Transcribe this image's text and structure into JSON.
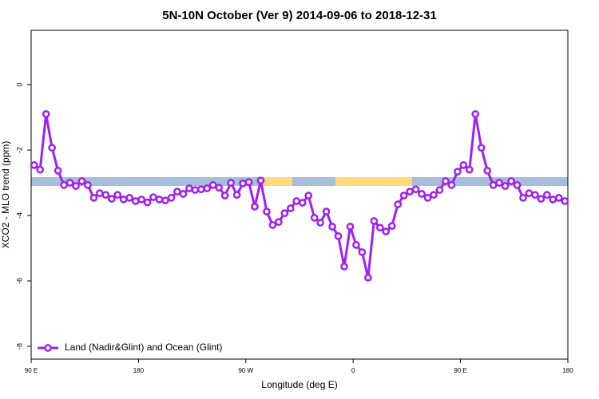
{
  "chart_data": {
    "type": "line",
    "title": "5N-10N October (Ver 9)   2014-09-06 to 2018-12-31",
    "xlabel": "Longitude (deg E)",
    "ylabel": "XCO2 - MLO trend (ppm)",
    "xlim": [
      90,
      540
    ],
    "ylim": [
      -8.39,
      1.66
    ],
    "xticks": [
      {
        "value": 90,
        "label": "90 E"
      },
      {
        "value": 180,
        "label": "180"
      },
      {
        "value": 270,
        "label": "90 W"
      },
      {
        "value": 360,
        "label": "0"
      },
      {
        "value": 450,
        "label": "90 E"
      },
      {
        "value": 540,
        "label": "180"
      }
    ],
    "yticks": [
      0,
      -2,
      -4,
      -6,
      -8
    ],
    "legend": "bottom-left",
    "x": [
      92.5,
      97.5,
      102.5,
      107.5,
      112.5,
      117.5,
      122.5,
      127.5,
      132.5,
      137.5,
      142.5,
      147.5,
      152.5,
      157.5,
      162.5,
      167.5,
      172.5,
      177.5,
      182.5,
      187.5,
      192.5,
      197.5,
      202.5,
      207.5,
      212.5,
      217.5,
      222.5,
      227.5,
      232.5,
      237.5,
      242.5,
      247.5,
      252.5,
      257.5,
      262.5,
      267.5,
      272.5,
      277.5,
      282.5,
      287.5,
      292.5,
      297.5,
      302.5,
      307.5,
      312.5,
      317.5,
      322.5,
      327.5,
      332.5,
      337.5,
      342.5,
      347.5,
      352.5,
      357.5,
      362.5,
      367.5,
      372.5,
      377.5,
      382.5,
      387.5,
      392.5,
      397.5,
      402.5,
      407.5,
      412.5,
      417.5,
      422.5,
      427.5,
      432.5,
      437.5,
      442.5,
      447.5,
      452.5,
      457.5,
      462.5,
      467.5,
      472.5,
      477.5,
      482.5,
      487.5,
      492.5,
      497.5,
      502.5,
      507.5,
      512.5,
      517.5,
      522.5,
      527.5,
      532.5,
      537.5
    ],
    "series": [
      {
        "name": "Land (Nadir&Glint) and Ocean (Glint)",
        "color": "#a020f0",
        "values": [
          -2.46,
          -2.6,
          -0.9,
          -1.93,
          -2.63,
          -3.07,
          -3.0,
          -3.1,
          -2.95,
          -3.07,
          -3.46,
          -3.32,
          -3.37,
          -3.49,
          -3.37,
          -3.51,
          -3.46,
          -3.56,
          -3.51,
          -3.6,
          -3.44,
          -3.51,
          -3.54,
          -3.46,
          -3.27,
          -3.34,
          -3.17,
          -3.22,
          -3.2,
          -3.17,
          -3.07,
          -3.15,
          -3.39,
          -3.0,
          -3.37,
          -3.02,
          -2.98,
          -3.73,
          -2.93,
          -3.88,
          -4.29,
          -4.2,
          -3.93,
          -3.78,
          -3.56,
          -3.61,
          -3.39,
          -4.07,
          -4.22,
          -3.88,
          -4.34,
          -4.63,
          -5.56,
          -4.34,
          -4.9,
          -5.12,
          -5.9,
          -4.17,
          -4.37,
          -4.49,
          -4.32,
          -3.66,
          -3.39,
          -3.27,
          -3.2,
          -3.34,
          -3.46,
          -3.37,
          -3.22,
          -2.95,
          -3.07,
          -2.66,
          -2.46,
          -2.6,
          -0.9,
          -1.93,
          -2.63,
          -3.07,
          -3.0,
          -3.1,
          -2.95,
          -3.07,
          -3.46,
          -3.32,
          -3.37,
          -3.49,
          -3.37,
          -3.51,
          -3.46,
          -3.56
        ]
      }
    ]
  }
}
